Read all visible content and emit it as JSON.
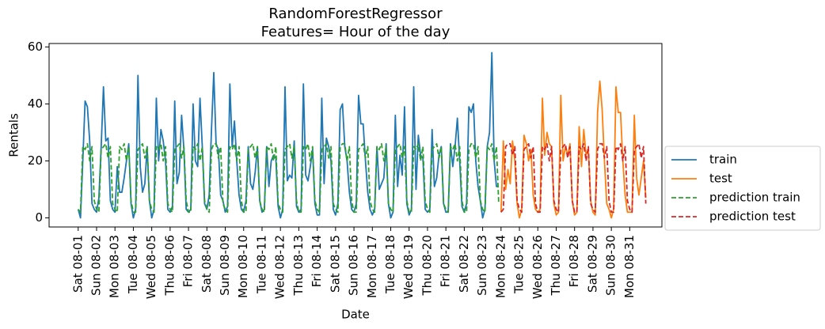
{
  "chart_data": {
    "type": "line",
    "title": [
      "RandomForestRegressor",
      "Features= Hour of the day"
    ],
    "x_label": "Date",
    "y_label": "Rentals",
    "xlim": [
      -38,
      762
    ],
    "ylim": [
      -3.2,
      61.2
    ],
    "yticks": [
      0,
      20,
      40,
      60
    ],
    "xticks": [
      {
        "value": 0,
        "label": "Sat 08-01"
      },
      {
        "value": 24,
        "label": "Sun 08-02"
      },
      {
        "value": 48,
        "label": "Mon 08-03"
      },
      {
        "value": 72,
        "label": "Tue 08-04"
      },
      {
        "value": 96,
        "label": "Wed 08-05"
      },
      {
        "value": 120,
        "label": "Thu 08-06"
      },
      {
        "value": 144,
        "label": "Fri 08-07"
      },
      {
        "value": 168,
        "label": "Sat 08-08"
      },
      {
        "value": 192,
        "label": "Sun 08-09"
      },
      {
        "value": 216,
        "label": "Mon 08-10"
      },
      {
        "value": 240,
        "label": "Tue 08-11"
      },
      {
        "value": 264,
        "label": "Wed 08-12"
      },
      {
        "value": 288,
        "label": "Thu 08-13"
      },
      {
        "value": 312,
        "label": "Fri 08-14"
      },
      {
        "value": 336,
        "label": "Sat 08-15"
      },
      {
        "value": 360,
        "label": "Sun 08-16"
      },
      {
        "value": 384,
        "label": "Mon 08-17"
      },
      {
        "value": 408,
        "label": "Tue 08-18"
      },
      {
        "value": 432,
        "label": "Wed 08-19"
      },
      {
        "value": 456,
        "label": "Thu 08-20"
      },
      {
        "value": 480,
        "label": "Fri 08-21"
      },
      {
        "value": 504,
        "label": "Sat 08-22"
      },
      {
        "value": 528,
        "label": "Sun 08-23"
      },
      {
        "value": 552,
        "label": "Mon 08-24"
      },
      {
        "value": 576,
        "label": "Tue 08-25"
      },
      {
        "value": 600,
        "label": "Wed 08-26"
      },
      {
        "value": 624,
        "label": "Thu 08-27"
      },
      {
        "value": 648,
        "label": "Fri 08-28"
      },
      {
        "value": 672,
        "label": "Sat 08-29"
      },
      {
        "value": 696,
        "label": "Sun 08-30"
      },
      {
        "value": 720,
        "label": "Mon 08-31"
      }
    ],
    "legend": "outside-right",
    "series": [
      {
        "name": "train",
        "color": "#1f77b4",
        "dashed": false,
        "x": [
          0,
          3,
          6,
          9,
          12,
          15,
          18,
          21,
          24,
          27,
          30,
          33,
          36,
          39,
          42,
          45,
          48,
          51,
          54,
          57,
          60,
          63,
          66,
          69,
          72,
          75,
          78,
          81,
          84,
          87,
          90,
          93,
          96,
          99,
          102,
          105,
          108,
          111,
          114,
          117,
          120,
          123,
          126,
          129,
          132,
          135,
          138,
          141,
          144,
          147,
          150,
          153,
          156,
          159,
          162,
          165,
          168,
          171,
          174,
          177,
          180,
          183,
          186,
          189,
          192,
          195,
          198,
          201,
          204,
          207,
          210,
          213,
          216,
          219,
          222,
          225,
          228,
          231,
          234,
          237,
          240,
          243,
          246,
          249,
          252,
          255,
          258,
          261,
          264,
          267,
          270,
          273,
          276,
          279,
          282,
          285,
          288,
          291,
          294,
          297,
          300,
          303,
          306,
          309,
          312,
          315,
          318,
          321,
          324,
          327,
          330,
          333,
          336,
          339,
          342,
          345,
          348,
          351,
          354,
          357,
          360,
          363,
          366,
          369,
          372,
          375,
          378,
          381,
          384,
          387,
          390,
          393,
          396,
          399,
          402,
          405,
          408,
          411,
          414,
          417,
          420,
          423,
          426,
          429,
          432,
          435,
          438,
          441,
          444,
          447,
          450,
          453,
          456,
          459,
          462,
          465,
          468,
          471,
          474,
          477,
          480,
          483,
          486,
          489,
          492,
          495,
          498,
          501,
          504,
          507,
          510,
          513,
          516,
          519,
          522,
          525,
          528,
          531,
          534,
          537,
          540,
          543,
          546,
          549
        ],
        "values": [
          3,
          0,
          20,
          41,
          39,
          27,
          5,
          3,
          2,
          7,
          25,
          46,
          27,
          28,
          6,
          3,
          2,
          18,
          9,
          9,
          14,
          20,
          26,
          5,
          0,
          3,
          50,
          18,
          9,
          12,
          25,
          6,
          0,
          3,
          42,
          20,
          31,
          27,
          20,
          3,
          2,
          4,
          41,
          12,
          16,
          36,
          24,
          3,
          2,
          3,
          40,
          20,
          18,
          42,
          25,
          5,
          3,
          8,
          31,
          51,
          26,
          24,
          8,
          6,
          2,
          4,
          47,
          25,
          34,
          20,
          8,
          3,
          2,
          6,
          25,
          12,
          10,
          16,
          25,
          6,
          2,
          3,
          25,
          11,
          20,
          22,
          21,
          4,
          0,
          3,
          46,
          13,
          15,
          14,
          27,
          4,
          2,
          3,
          47,
          15,
          13,
          18,
          24,
          5,
          1,
          1,
          42,
          12,
          28,
          25,
          20,
          3,
          1,
          5,
          38,
          40,
          25,
          20,
          9,
          3,
          2,
          5,
          43,
          33,
          33,
          20,
          9,
          3,
          1,
          3,
          25,
          10,
          12,
          14,
          26,
          5,
          0,
          2,
          36,
          11,
          22,
          15,
          39,
          5,
          1,
          3,
          46,
          10,
          29,
          22,
          21,
          3,
          2,
          3,
          31,
          11,
          14,
          22,
          25,
          5,
          2,
          2,
          26,
          18,
          25,
          35,
          20,
          4,
          2,
          5,
          39,
          37,
          40,
          20,
          11,
          6,
          0,
          3,
          25,
          30,
          58,
          20,
          11,
          11
        ]
      },
      {
        "name": "test",
        "color": "#ff7f0e",
        "dashed": false,
        "x": [
          552,
          555,
          558,
          561,
          564,
          567,
          570,
          573,
          576,
          579,
          582,
          585,
          588,
          591,
          594,
          597,
          600,
          603,
          606,
          609,
          612,
          615,
          618,
          621,
          624,
          627,
          630,
          633,
          636,
          639,
          642,
          645,
          648,
          651,
          654,
          657,
          660,
          663,
          666,
          669,
          672,
          675,
          678,
          681,
          684,
          687,
          690,
          693,
          696,
          699,
          702,
          705,
          708,
          711,
          714,
          717,
          720,
          723,
          726,
          729,
          732,
          735,
          738,
          741
        ],
        "values": [
          2,
          27,
          10,
          17,
          12,
          27,
          20,
          5,
          0,
          3,
          29,
          26,
          20,
          24,
          8,
          3,
          2,
          3,
          42,
          22,
          30,
          26,
          25,
          5,
          1,
          2,
          43,
          20,
          25,
          22,
          26,
          6,
          1,
          2,
          32,
          18,
          31,
          22,
          24,
          6,
          2,
          1,
          37,
          48,
          38,
          20,
          5,
          3,
          0,
          3,
          46,
          37,
          37,
          20,
          8,
          2,
          2,
          2,
          36,
          14,
          8,
          14,
          20,
          7
        ]
      },
      {
        "name": "prediction train",
        "color": "#2ca02c",
        "dashed": true,
        "x": [
          0,
          3,
          6,
          9,
          12,
          15,
          18,
          21,
          24,
          27,
          30,
          33,
          36,
          39,
          42,
          45,
          48,
          51,
          54,
          57,
          60,
          63,
          66,
          69,
          72,
          75,
          78,
          81,
          84,
          87,
          90,
          93,
          96,
          99,
          102,
          105,
          108,
          111,
          114,
          117,
          120,
          123,
          126,
          129,
          132,
          135,
          138,
          141,
          144,
          147,
          150,
          153,
          156,
          159,
          162,
          165,
          168,
          171,
          174,
          177,
          180,
          183,
          186,
          189,
          192,
          195,
          198,
          201,
          204,
          207,
          210,
          213,
          216,
          219,
          222,
          225,
          228,
          231,
          234,
          237,
          240,
          243,
          246,
          249,
          252,
          255,
          258,
          261,
          264,
          267,
          270,
          273,
          276,
          279,
          282,
          285,
          288,
          291,
          294,
          297,
          300,
          303,
          306,
          309,
          312,
          315,
          318,
          321,
          324,
          327,
          330,
          333,
          336,
          339,
          342,
          345,
          348,
          351,
          354,
          357,
          360,
          363,
          366,
          369,
          372,
          375,
          378,
          381,
          384,
          387,
          390,
          393,
          396,
          399,
          402,
          405,
          408,
          411,
          414,
          417,
          420,
          423,
          426,
          429,
          432,
          435,
          438,
          441,
          444,
          447,
          450,
          453,
          456,
          459,
          462,
          465,
          468,
          471,
          474,
          477,
          480,
          483,
          486,
          489,
          492,
          495,
          498,
          501,
          504,
          507,
          510,
          513,
          516,
          519,
          522,
          525,
          528,
          531,
          534,
          537,
          540,
          543,
          546,
          549
        ],
        "values": [
          3,
          2,
          25,
          24,
          26,
          20,
          25,
          6,
          3,
          2,
          24,
          25,
          26,
          21,
          25,
          5,
          3,
          2,
          25,
          24,
          26,
          20,
          25,
          6,
          2,
          2,
          24,
          25,
          26,
          21,
          25,
          6,
          3,
          2,
          25,
          24,
          26,
          20,
          25,
          5,
          3,
          2,
          24,
          25,
          26,
          21,
          25,
          6,
          2,
          2,
          25,
          24,
          26,
          20,
          25,
          6,
          3,
          2,
          24,
          26,
          26,
          21,
          25,
          5,
          3,
          2,
          25,
          24,
          26,
          20,
          25,
          6,
          2,
          2,
          24,
          25,
          26,
          21,
          25,
          6,
          3,
          2,
          25,
          24,
          26,
          20,
          25,
          5,
          3,
          2,
          24,
          25,
          26,
          21,
          25,
          6,
          2,
          2,
          25,
          24,
          26,
          20,
          25,
          6,
          3,
          2,
          24,
          25,
          26,
          21,
          25,
          5,
          3,
          2,
          25,
          26,
          26,
          20,
          25,
          6,
          2,
          2,
          24,
          25,
          26,
          21,
          25,
          6,
          3,
          2,
          25,
          24,
          26,
          20,
          25,
          5,
          3,
          2,
          24,
          25,
          26,
          21,
          25,
          6,
          2,
          2,
          25,
          24,
          26,
          20,
          25,
          6,
          3,
          2,
          24,
          25,
          26,
          21,
          25,
          5,
          3,
          2,
          25,
          24,
          26,
          20,
          25,
          6,
          2,
          2,
          24,
          26,
          26,
          21,
          25,
          6,
          3,
          2,
          25,
          24,
          26,
          20,
          25,
          5
        ]
      },
      {
        "name": "prediction test",
        "color": "#d62728",
        "dashed": true,
        "x": [
          552,
          555,
          558,
          561,
          564,
          567,
          570,
          573,
          576,
          579,
          582,
          585,
          588,
          591,
          594,
          597,
          600,
          603,
          606,
          609,
          612,
          615,
          618,
          621,
          624,
          627,
          630,
          633,
          636,
          639,
          642,
          645,
          648,
          651,
          654,
          657,
          660,
          663,
          666,
          669,
          672,
          675,
          678,
          681,
          684,
          687,
          690,
          693,
          696,
          699,
          702,
          705,
          708,
          711,
          714,
          717,
          720,
          723,
          726,
          729,
          732,
          735,
          738,
          741
        ],
        "values": [
          2,
          3,
          25,
          26,
          26,
          22,
          25,
          6,
          3,
          2,
          24,
          25,
          26,
          21,
          25,
          5,
          2,
          2,
          25,
          24,
          26,
          20,
          25,
          6,
          3,
          2,
          24,
          25,
          26,
          21,
          25,
          6,
          2,
          2,
          25,
          24,
          26,
          20,
          25,
          5,
          3,
          2,
          24,
          26,
          26,
          21,
          25,
          6,
          2,
          2,
          25,
          24,
          26,
          20,
          25,
          6,
          3,
          2,
          24,
          25,
          26,
          21,
          25,
          5
        ]
      }
    ]
  }
}
